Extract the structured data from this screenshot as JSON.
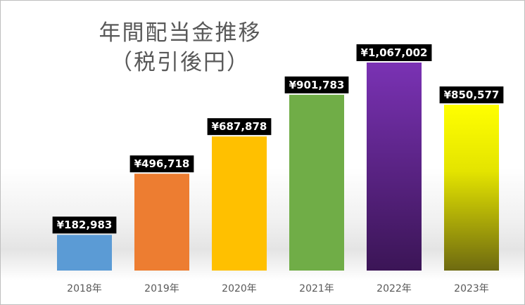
{
  "chart_data": {
    "type": "bar",
    "title_lines": [
      "年間配当金推移",
      "（税引後円）"
    ],
    "categories": [
      "2018年",
      "2019年",
      "2020年",
      "2021年",
      "2022年",
      "2023年"
    ],
    "values": [
      182983,
      496718,
      687878,
      901783,
      1067002,
      850577
    ],
    "data_labels": [
      "¥182,983",
      "¥496,718",
      "¥687,878",
      "¥901,783",
      "¥1,067,002",
      "¥850,577"
    ],
    "colors": [
      "#5b9bd5",
      "#ed7d31",
      "#ffc000",
      "#70ad47",
      "#7030a0",
      "#ffff00"
    ],
    "grid": false,
    "legend": "none"
  }
}
